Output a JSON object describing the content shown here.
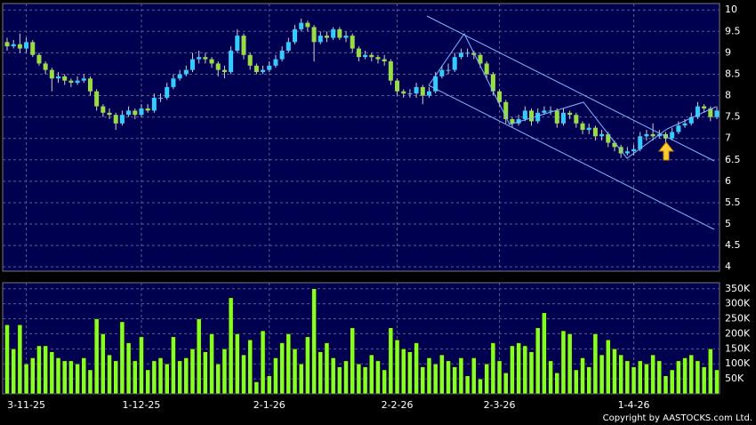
{
  "chart_data": {
    "type": "candlestick",
    "categories": [
      null,
      null,
      null,
      "3-11-25",
      null,
      null,
      null,
      null,
      null,
      null,
      null,
      null,
      null,
      null,
      null,
      null,
      null,
      null,
      null,
      null,
      null,
      "1-12-25",
      null,
      null,
      null,
      null,
      null,
      null,
      null,
      null,
      null,
      null,
      null,
      null,
      null,
      null,
      null,
      null,
      null,
      null,
      null,
      "2-1-26",
      null,
      null,
      null,
      null,
      null,
      null,
      null,
      null,
      null,
      null,
      null,
      null,
      null,
      null,
      null,
      null,
      null,
      null,
      null,
      "2-2-26",
      null,
      null,
      null,
      null,
      null,
      null,
      null,
      null,
      null,
      null,
      null,
      null,
      null,
      null,
      null,
      "2-3-26",
      null,
      null,
      null,
      null,
      null,
      null,
      null,
      null,
      null,
      null,
      null,
      null,
      null,
      null,
      null,
      null,
      null,
      null,
      null,
      null,
      "1-4-26",
      null,
      null,
      null,
      null,
      null,
      null,
      null,
      null,
      null,
      null,
      null,
      null,
      null
    ],
    "open": [
      9.25,
      9.15,
      9.2,
      9.1,
      9.25,
      8.95,
      8.75,
      8.6,
      8.4,
      8.45,
      8.35,
      8.3,
      8.35,
      8.4,
      8.1,
      7.75,
      7.6,
      7.55,
      7.35,
      7.55,
      7.65,
      7.55,
      7.7,
      7.65,
      7.95,
      7.95,
      8.2,
      8.4,
      8.5,
      8.6,
      8.85,
      8.9,
      8.85,
      8.75,
      8.6,
      8.55,
      9.05,
      9.4,
      8.95,
      8.7,
      8.55,
      8.6,
      8.7,
      8.85,
      9.05,
      9.25,
      9.55,
      9.7,
      9.6,
      9.25,
      9.4,
      9.35,
      9.55,
      9.35,
      9.4,
      9.1,
      8.9,
      8.95,
      8.9,
      8.85,
      8.8,
      8.35,
      8.1,
      8.05,
      8.05,
      8.2,
      8.0,
      8.1,
      8.45,
      8.6,
      8.6,
      8.9,
      9.0,
      9.0,
      8.95,
      8.75,
      8.5,
      8.1,
      7.85,
      7.45,
      7.35,
      7.45,
      7.65,
      7.4,
      7.6,
      7.65,
      7.65,
      7.35,
      7.6,
      7.55,
      7.35,
      7.2,
      7.25,
      7.05,
      7.1,
      6.9,
      6.8,
      6.65,
      6.7,
      6.75,
      7.05,
      7.1,
      7.05,
      7.1,
      7.0,
      7.15,
      7.3,
      7.35,
      7.5,
      7.75,
      7.7,
      7.5
    ],
    "high": [
      9.35,
      9.3,
      9.45,
      9.35,
      9.3,
      9.0,
      8.8,
      8.65,
      8.55,
      8.5,
      8.4,
      8.45,
      8.5,
      8.45,
      8.15,
      7.8,
      7.7,
      7.6,
      7.65,
      7.75,
      7.7,
      7.8,
      7.8,
      8.05,
      8.05,
      8.3,
      8.5,
      8.6,
      8.7,
      9.0,
      9.05,
      9.0,
      8.9,
      8.8,
      8.7,
      9.15,
      9.55,
      9.45,
      9.0,
      8.75,
      8.7,
      8.8,
      8.95,
      9.15,
      9.35,
      9.65,
      9.8,
      9.75,
      9.65,
      9.5,
      9.5,
      9.6,
      9.6,
      9.5,
      9.45,
      9.15,
      9.05,
      9.0,
      8.95,
      8.95,
      8.85,
      8.4,
      8.15,
      8.15,
      8.3,
      8.25,
      8.2,
      8.55,
      8.7,
      8.75,
      9.0,
      9.1,
      9.1,
      9.05,
      9.0,
      8.8,
      8.55,
      8.15,
      7.9,
      7.5,
      7.55,
      7.75,
      7.7,
      7.7,
      7.75,
      7.75,
      7.7,
      7.7,
      7.65,
      7.6,
      7.4,
      7.35,
      7.3,
      7.2,
      7.15,
      6.95,
      6.85,
      6.8,
      6.85,
      7.15,
      7.2,
      7.35,
      7.2,
      7.15,
      7.25,
      7.4,
      7.45,
      7.6,
      7.85,
      7.8,
      7.75,
      7.75
    ],
    "low": [
      9.05,
      9.1,
      9.0,
      9.0,
      8.9,
      8.7,
      8.5,
      8.1,
      8.3,
      8.25,
      8.2,
      8.25,
      8.3,
      8.0,
      7.65,
      7.5,
      7.45,
      7.2,
      7.3,
      7.5,
      7.45,
      7.5,
      7.6,
      7.6,
      7.85,
      7.9,
      8.15,
      8.35,
      8.45,
      8.55,
      8.75,
      8.75,
      8.65,
      8.45,
      8.4,
      8.5,
      9.0,
      8.85,
      8.6,
      8.5,
      8.5,
      8.55,
      8.65,
      8.8,
      9.0,
      9.2,
      9.5,
      9.5,
      8.8,
      9.2,
      9.25,
      9.3,
      9.3,
      9.25,
      9.0,
      8.8,
      8.85,
      8.8,
      8.75,
      8.7,
      8.25,
      8.0,
      7.95,
      7.95,
      7.95,
      7.8,
      7.95,
      8.05,
      8.4,
      8.5,
      8.55,
      8.85,
      8.9,
      8.85,
      8.65,
      8.4,
      8.0,
      7.75,
      7.35,
      7.25,
      7.3,
      7.4,
      7.3,
      7.35,
      7.55,
      7.55,
      7.25,
      7.3,
      7.45,
      7.25,
      7.1,
      7.1,
      6.95,
      6.95,
      6.8,
      6.7,
      6.55,
      6.6,
      6.6,
      6.7,
      6.95,
      6.95,
      7.0,
      6.9,
      6.95,
      7.1,
      7.25,
      7.3,
      7.45,
      7.6,
      7.4,
      7.45
    ],
    "close": [
      9.15,
      9.2,
      9.1,
      9.25,
      8.95,
      8.75,
      8.6,
      8.4,
      8.45,
      8.35,
      8.3,
      8.35,
      8.4,
      8.1,
      7.75,
      7.6,
      7.55,
      7.35,
      7.55,
      7.65,
      7.55,
      7.7,
      7.65,
      7.95,
      7.95,
      8.2,
      8.4,
      8.5,
      8.6,
      8.85,
      8.9,
      8.85,
      8.75,
      8.6,
      8.55,
      9.05,
      9.4,
      8.95,
      8.7,
      8.55,
      8.6,
      8.7,
      8.85,
      9.05,
      9.25,
      9.55,
      9.7,
      9.6,
      9.25,
      9.4,
      9.35,
      9.55,
      9.35,
      9.4,
      9.1,
      8.9,
      8.95,
      8.9,
      8.85,
      8.8,
      8.35,
      8.1,
      8.05,
      8.05,
      8.2,
      8.0,
      8.1,
      8.45,
      8.6,
      8.6,
      8.9,
      9.0,
      9.0,
      8.95,
      8.75,
      8.5,
      8.1,
      7.85,
      7.45,
      7.35,
      7.45,
      7.65,
      7.4,
      7.6,
      7.65,
      7.65,
      7.35,
      7.6,
      7.55,
      7.35,
      7.2,
      7.25,
      7.05,
      7.1,
      6.9,
      6.8,
      6.65,
      6.7,
      6.75,
      7.05,
      7.1,
      7.05,
      7.1,
      7.0,
      7.15,
      7.3,
      7.35,
      7.5,
      7.75,
      7.7,
      7.5,
      7.65
    ],
    "volume": [
      230000,
      150000,
      230000,
      100000,
      120000,
      160000,
      160000,
      140000,
      120000,
      110000,
      110000,
      100000,
      120000,
      80000,
      250000,
      200000,
      130000,
      110000,
      240000,
      170000,
      110000,
      190000,
      80000,
      110000,
      120000,
      100000,
      190000,
      110000,
      120000,
      150000,
      250000,
      140000,
      200000,
      100000,
      150000,
      320000,
      200000,
      130000,
      180000,
      40000,
      210000,
      60000,
      120000,
      170000,
      200000,
      150000,
      100000,
      190000,
      350000,
      140000,
      170000,
      120000,
      90000,
      110000,
      220000,
      100000,
      90000,
      130000,
      110000,
      80000,
      220000,
      180000,
      150000,
      140000,
      170000,
      90000,
      120000,
      100000,
      130000,
      110000,
      90000,
      120000,
      60000,
      120000,
      50000,
      100000,
      170000,
      110000,
      70000,
      160000,
      170000,
      160000,
      140000,
      220000,
      270000,
      110000,
      70000,
      210000,
      200000,
      80000,
      120000,
      90000,
      200000,
      130000,
      180000,
      150000,
      130000,
      110000,
      90000,
      110000,
      100000,
      130000,
      110000,
      60000,
      80000,
      110000,
      120000,
      130000,
      110000,
      90000,
      150000,
      80000
    ],
    "up_color": "#33ccff",
    "down_color": "#99dd44",
    "volume_color": "#88ff22",
    "ylim": [
      3.9,
      10.15
    ],
    "yticks": [
      4,
      4.5,
      5,
      5.5,
      6,
      6.5,
      7,
      7.5,
      8,
      8.5,
      9,
      9.5,
      10
    ],
    "volume_ylim": [
      0,
      370000
    ],
    "volume_yticks": [
      {
        "value": 50000,
        "label": "50K"
      },
      {
        "value": 100000,
        "label": "100K"
      },
      {
        "value": 150000,
        "label": "150K"
      },
      {
        "value": 200000,
        "label": "200K"
      },
      {
        "value": 250000,
        "label": "250K"
      },
      {
        "value": 300000,
        "label": "300K"
      },
      {
        "value": 350000,
        "label": "350K"
      }
    ],
    "grid": true,
    "copyright": "Copyright by AASTOCKS.com Ltd."
  }
}
